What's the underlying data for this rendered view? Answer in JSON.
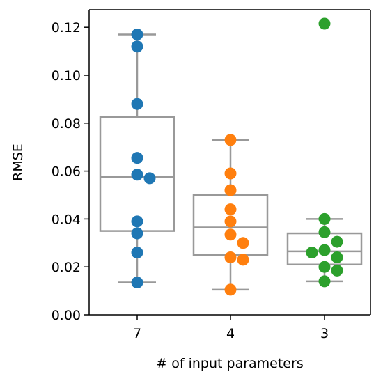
{
  "chart_data": {
    "type": "box",
    "title": "",
    "xlabel": "# of input parameters",
    "ylabel": "RMSE",
    "ylim": [
      0.0,
      0.127
    ],
    "yticks": [
      0.0,
      0.02,
      0.04,
      0.06,
      0.08,
      0.1,
      0.12
    ],
    "ytick_labels": [
      "0.00",
      "0.02",
      "0.04",
      "0.06",
      "0.08",
      "0.10",
      "0.12"
    ],
    "categories": [
      "7",
      "4",
      "3"
    ],
    "grid": false,
    "series": [
      {
        "category": "7",
        "color": "#1f77b4",
        "box": {
          "whisker_low": 0.0135,
          "q1": 0.035,
          "median": 0.0575,
          "q3": 0.0825,
          "whisker_high": 0.117
        },
        "points": [
          0.117,
          0.112,
          0.088,
          0.0655,
          0.0585,
          0.057,
          0.039,
          0.034,
          0.026,
          0.0135
        ],
        "outliers": []
      },
      {
        "category": "4",
        "color": "#ff7f0e",
        "box": {
          "whisker_low": 0.0105,
          "q1": 0.025,
          "median": 0.0365,
          "q3": 0.05,
          "whisker_high": 0.073
        },
        "points": [
          0.073,
          0.059,
          0.052,
          0.044,
          0.039,
          0.0335,
          0.03,
          0.024,
          0.023,
          0.0105
        ],
        "outliers": []
      },
      {
        "category": "3",
        "color": "#2ca02c",
        "box": {
          "whisker_low": 0.014,
          "q1": 0.021,
          "median": 0.0265,
          "q3": 0.034,
          "whisker_high": 0.04
        },
        "points": [
          0.04,
          0.0345,
          0.0305,
          0.027,
          0.026,
          0.024,
          0.02,
          0.0185,
          0.014
        ],
        "outliers": [
          0.1215
        ]
      }
    ]
  }
}
